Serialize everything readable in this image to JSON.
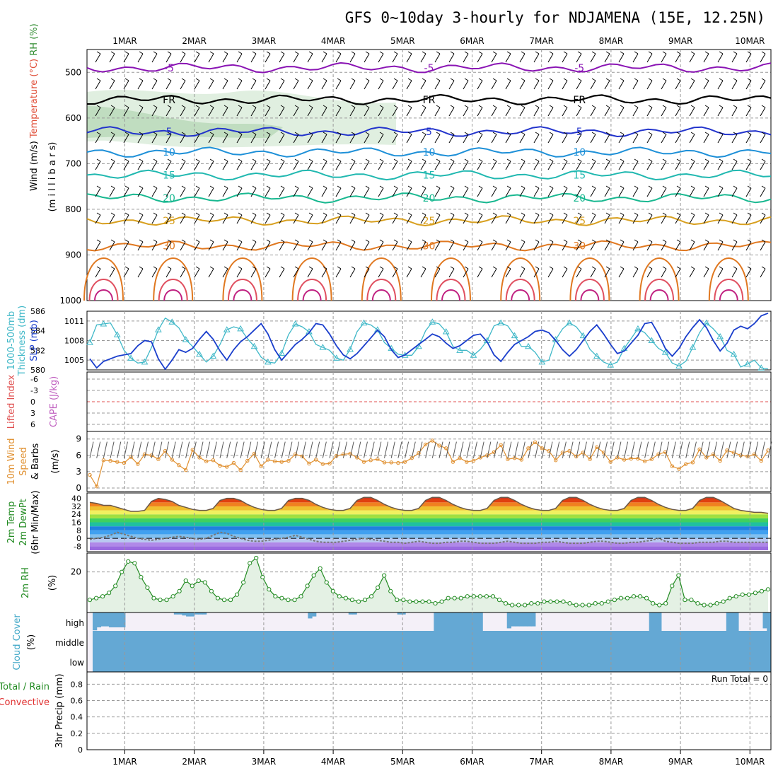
{
  "title": "GFS 0~10day 3-hourly for NDJAMENA (15E, 12.25N)",
  "colors": {
    "frame": "#000000",
    "grid": "#999999"
  },
  "chart_data": [
    {
      "type": "line",
      "panel": "upper_air",
      "ylabel_parts": [
        {
          "text": "Wind (m/s)",
          "color": "#000000"
        },
        {
          "text": "Temperature (°C)",
          "color": "#e0503a"
        },
        {
          "text": "RH (%)",
          "color": "#2e8b2e"
        }
      ],
      "ylabel_right": "(m i l l i b a r s)",
      "yticks": [
        500,
        600,
        700,
        800,
        900,
        1000
      ],
      "ylim": [
        450,
        1000
      ],
      "x_dates": [
        "1MAR",
        "2MAR",
        "3MAR",
        "4MAR",
        "5MAR",
        "6MAR",
        "7MAR",
        "8MAR",
        "9MAR",
        "10MAR"
      ],
      "series": [
        {
          "name": "-5",
          "color": "#8a14b4",
          "level": 490
        },
        {
          "name": "FR",
          "color": "#000000",
          "level": 560
        },
        {
          "name": "5",
          "color": "#2233cc",
          "level": 630
        },
        {
          "name": "10",
          "color": "#1e90d8",
          "level": 675
        },
        {
          "name": "15",
          "color": "#20b8b0",
          "level": 725
        },
        {
          "name": "20",
          "color": "#18b890",
          "level": 775
        },
        {
          "name": "25",
          "color": "#d8a020",
          "level": 825
        },
        {
          "name": "30",
          "color": "#e07820",
          "level": 880
        }
      ]
    },
    {
      "type": "line",
      "panel": "thickness_slp",
      "ylabel_left": [
        "1000-500mb",
        "Thickness (dm)"
      ],
      "ylabel_right": "SLP (mb)",
      "yticks_left": [
        580,
        582,
        584,
        586
      ],
      "yticks_right": [
        1005,
        1008,
        1011
      ],
      "series": [
        {
          "name": "Thickness",
          "color": "#40b8c8",
          "values": [
            582.8,
            584.6,
            584.7,
            584.8,
            583.6,
            582.0,
            581.2,
            580.7,
            580.8,
            582.3,
            584.1,
            585.3,
            584.9,
            584.3,
            583.1,
            582.4,
            581.6,
            580.8,
            581.4,
            582.6,
            584.1,
            584.4,
            584.2,
            583.2,
            582.4,
            581.3,
            580.8,
            580.7,
            581.7,
            583.6,
            584.7,
            584.4,
            583.9,
            582.6,
            582.3,
            582.0,
            581.2,
            581.0,
            582.1,
            583.9,
            584.8,
            584.6,
            584.1,
            582.8,
            582.2,
            581.6,
            581.5,
            581.5,
            582.4,
            584.0,
            584.9,
            584.7,
            583.9,
            582.4,
            582.0,
            582.0,
            581.5,
            582.1,
            583.0,
            584.5,
            584.8,
            584.5,
            583.5,
            582.4,
            582.4,
            581.8,
            580.8,
            581.0,
            583.1,
            584.2,
            584.8,
            584.4,
            583.5,
            582.1,
            581.4,
            580.8,
            580.5,
            580.8,
            582.2,
            583.2,
            584.2,
            583.8,
            583.0,
            582.2,
            581.8,
            580.7,
            580.4,
            580.9,
            582.3,
            583.8,
            584.8,
            584.2,
            583.4,
            582.0,
            581.6,
            580.3,
            580.6,
            581.0,
            580.2,
            580.1
          ]
        },
        {
          "name": "SLP",
          "color": "#1a3ecc",
          "values": [
            1005.2,
            1003.8,
            1004.8,
            1005.2,
            1005.6,
            1005.8,
            1006.0,
            1007.2,
            1008.0,
            1007.8,
            1005.2,
            1003.6,
            1005.0,
            1006.6,
            1006.2,
            1006.8,
            1008.2,
            1009.4,
            1008.2,
            1006.4,
            1005.0,
            1006.6,
            1007.8,
            1008.6,
            1009.6,
            1010.6,
            1009.0,
            1006.6,
            1005.0,
            1006.2,
            1007.4,
            1008.2,
            1009.2,
            1010.6,
            1010.4,
            1009.0,
            1007.2,
            1005.8,
            1005.2,
            1006.0,
            1007.2,
            1008.4,
            1009.6,
            1008.6,
            1006.6,
            1005.4,
            1005.8,
            1006.6,
            1007.4,
            1008.2,
            1009.0,
            1008.6,
            1007.6,
            1006.8,
            1007.2,
            1008.0,
            1008.8,
            1009.0,
            1007.8,
            1005.8,
            1004.8,
            1006.2,
            1007.4,
            1008.0,
            1008.6,
            1009.4,
            1009.6,
            1009.2,
            1008.0,
            1006.6,
            1005.6,
            1006.6,
            1008.0,
            1009.4,
            1010.4,
            1009.0,
            1007.4,
            1006.0,
            1006.4,
            1007.6,
            1008.8,
            1010.6,
            1010.8,
            1009.0,
            1006.8,
            1005.6,
            1006.8,
            1008.6,
            1010.0,
            1011.2,
            1010.0,
            1008.0,
            1006.4,
            1007.6,
            1009.6,
            1010.2,
            1009.8,
            1010.6,
            1011.8,
            1012.2
          ]
        }
      ]
    },
    {
      "type": "line",
      "panel": "lifted_cape",
      "ylabel_left": "Lifted Index",
      "ylabel_right": "CAPE (J/kg)",
      "yticks": [
        "-6",
        "-3",
        "0",
        "3",
        "6"
      ],
      "series": [
        {
          "name": "Lifted Index",
          "color": "#e05050",
          "values": []
        },
        {
          "name": "CAPE",
          "color": "#c060c0",
          "values": []
        }
      ]
    },
    {
      "type": "line",
      "panel": "wind10m",
      "ylabel_lines": [
        "10m Wind",
        "Speed",
        "& Barbs"
      ],
      "ylabel_unit": "(m/s)",
      "yticks": [
        0,
        3,
        6,
        9
      ],
      "ylim": [
        0,
        10
      ],
      "series": [
        {
          "name": "Speed",
          "color": "#e09030",
          "values": [
            2.4,
            0.3,
            5.1,
            5.0,
            4.8,
            4.6,
            5.7,
            4.4,
            6.2,
            6.0,
            5.3,
            6.8,
            5.2,
            4.2,
            3.3,
            7.0,
            5.6,
            4.9,
            5.1,
            4.1,
            3.9,
            4.6,
            3.3,
            5.0,
            6.3,
            4.0,
            5.2,
            4.9,
            4.8,
            5.0,
            6.2,
            5.8,
            4.5,
            5.2,
            4.4,
            4.5,
            5.9,
            6.2,
            6.3,
            5.6,
            4.8,
            5.1,
            5.3,
            4.7,
            4.7,
            4.6,
            4.8,
            5.5,
            6.4,
            8.0,
            8.7,
            7.8,
            7.3,
            4.8,
            5.5,
            4.8,
            5.0,
            5.6,
            6.0,
            6.6,
            7.9,
            5.3,
            5.5,
            5.2,
            7.3,
            8.4,
            7.3,
            6.8,
            5.1,
            6.5,
            6.8,
            5.8,
            6.5,
            5.3,
            7.5,
            6.5,
            4.8,
            5.6,
            5.2,
            5.4,
            5.4,
            4.9,
            5.3,
            6.2,
            6.6,
            4.0,
            3.5,
            4.4,
            4.7,
            7.1,
            5.6,
            6.2,
            5.0,
            6.9,
            6.5,
            6.0,
            5.8,
            6.2,
            5.0,
            6.9
          ]
        }
      ]
    },
    {
      "type": "line",
      "panel": "temp2m",
      "ylabel_lines": [
        "2m Temp",
        "2m DewPt",
        "(6hr Min/Max)"
      ],
      "yticks": [
        -8,
        0,
        8,
        16,
        24,
        32,
        40
      ],
      "series": [
        {
          "name": "2m Temp",
          "color": "#6a5848",
          "values": [
            36,
            35,
            33,
            33,
            31,
            29,
            27,
            27,
            28,
            37,
            40,
            39,
            37,
            33,
            31,
            29,
            28,
            28,
            30,
            38,
            40,
            40,
            38,
            34,
            31,
            29,
            28,
            28,
            30,
            38,
            40,
            40,
            38,
            34,
            31,
            29,
            28,
            28,
            30,
            38,
            41,
            41,
            38,
            34,
            31,
            29,
            28,
            28,
            30,
            38,
            41,
            41,
            38,
            34,
            31,
            29,
            28,
            28,
            30,
            38,
            41,
            41,
            38,
            34,
            31,
            29,
            28,
            28,
            30,
            38,
            41,
            41,
            38,
            34,
            31,
            29,
            28,
            28,
            30,
            38,
            41,
            41,
            38,
            34,
            31,
            29,
            28,
            28,
            30,
            38,
            41,
            41,
            38,
            34,
            30,
            28,
            27,
            26,
            26,
            25
          ]
        },
        {
          "name": "2m DewPt",
          "color": "#777777",
          "values": [
            -1,
            0,
            1,
            3,
            6,
            4,
            2,
            0,
            -1,
            -2,
            -1,
            0,
            1,
            2,
            1,
            0,
            -1,
            0,
            3,
            6,
            5,
            2,
            0,
            -2,
            -3,
            -3,
            -2,
            -1,
            0,
            1,
            3,
            1,
            -1,
            -3,
            -4,
            -4,
            -4,
            -3,
            -2,
            -1,
            0,
            -1,
            -2,
            -3,
            -4,
            -4,
            -5,
            -4,
            -3,
            -4,
            -5,
            -5,
            -4,
            -4,
            -3,
            -3,
            -4,
            -5,
            -5,
            -5,
            -4,
            -3,
            -4,
            -5,
            -5,
            -5,
            -4,
            -4,
            -3,
            -4,
            -5,
            -5,
            -5,
            -4,
            -3,
            -3,
            -4,
            -5,
            -5,
            -4,
            -4,
            -3,
            -2,
            0,
            -3,
            -4,
            -5,
            -5,
            -5,
            -4,
            -4,
            -4,
            -3,
            -3,
            -4,
            -4,
            -4,
            -4,
            -4,
            -4
          ]
        }
      ]
    },
    {
      "type": "area",
      "panel": "rh2m",
      "ylabel": "2m RH",
      "ylabel_unit": "(%)",
      "yticks": [
        20
      ],
      "series": [
        {
          "name": "2m RH",
          "color": "#228b22",
          "values": [
            4,
            5,
            6,
            8,
            12,
            20,
            26,
            25,
            17,
            11,
            5,
            4,
            4,
            6,
            9,
            15,
            12,
            15,
            14,
            9,
            5,
            4,
            4,
            7,
            14,
            25,
            28,
            17,
            10,
            6,
            5,
            4,
            4,
            6,
            12,
            18,
            22,
            14,
            9,
            6,
            5,
            4,
            3,
            4,
            6,
            11,
            18,
            9,
            4,
            4,
            3,
            3,
            3,
            3,
            2,
            3,
            5,
            5,
            5,
            6,
            6,
            6,
            6,
            6,
            4,
            2,
            1,
            1,
            1,
            2,
            2,
            3,
            3,
            3,
            3,
            2,
            1,
            1,
            1,
            2,
            2,
            3,
            4,
            5,
            5,
            6,
            6,
            5,
            2,
            1,
            2,
            12,
            18,
            4,
            4,
            2,
            1,
            1,
            2,
            3,
            5,
            6,
            7,
            7,
            8,
            9,
            10
          ]
        }
      ]
    },
    {
      "type": "bar",
      "panel": "cloud",
      "ylabel": "Cloud Cover",
      "ylabel_unit": "(%)",
      "layers": [
        "high",
        "middle",
        "low"
      ],
      "high_values": [
        90,
        75,
        70,
        70,
        75,
        75,
        75,
        75,
        0,
        0,
        0,
        0,
        0,
        0,
        0,
        0,
        0,
        0,
        0,
        0,
        10,
        10,
        15,
        20,
        20,
        10,
        10,
        10,
        0,
        0,
        0,
        0,
        0,
        0,
        0,
        0,
        0,
        0,
        0,
        0,
        0,
        0,
        0,
        0,
        0,
        0,
        0,
        0,
        0,
        0,
        0,
        0,
        0,
        30,
        20,
        0,
        0,
        0,
        0,
        0,
        0,
        0,
        0,
        10,
        10,
        0,
        0,
        0,
        0,
        0,
        0,
        0,
        0,
        0,
        0,
        10,
        10,
        0,
        0,
        0,
        0,
        0,
        0,
        0,
        100,
        100,
        100,
        100,
        100,
        100,
        100,
        100,
        100,
        100,
        100,
        100,
        0,
        0,
        0,
        0,
        0,
        0,
        80,
        70,
        70,
        70,
        70,
        70,
        70,
        0,
        0,
        0,
        0,
        0,
        0,
        0,
        0,
        0,
        0,
        0,
        0,
        0,
        0,
        0,
        0,
        0,
        0,
        0,
        0,
        0,
        0,
        0,
        0,
        0,
        0,
        0,
        0,
        100,
        100,
        100,
        0,
        0,
        0,
        0,
        0,
        0,
        0,
        0,
        0,
        0,
        0,
        0,
        0,
        0,
        0,
        0,
        100,
        100,
        100,
        0,
        0,
        0,
        0,
        0,
        0,
        80,
        100
      ],
      "mid_low_values": [
        100
      ]
    },
    {
      "type": "bar",
      "panel": "precip",
      "ylabel_left": [
        "Total / Rain",
        "Convective"
      ],
      "ylabel_unit": "3hr Precip (mm)",
      "yticks": [
        0,
        0.2,
        0.4,
        0.6,
        0.8
      ],
      "annotation": "Run Total = 0",
      "values": []
    }
  ]
}
